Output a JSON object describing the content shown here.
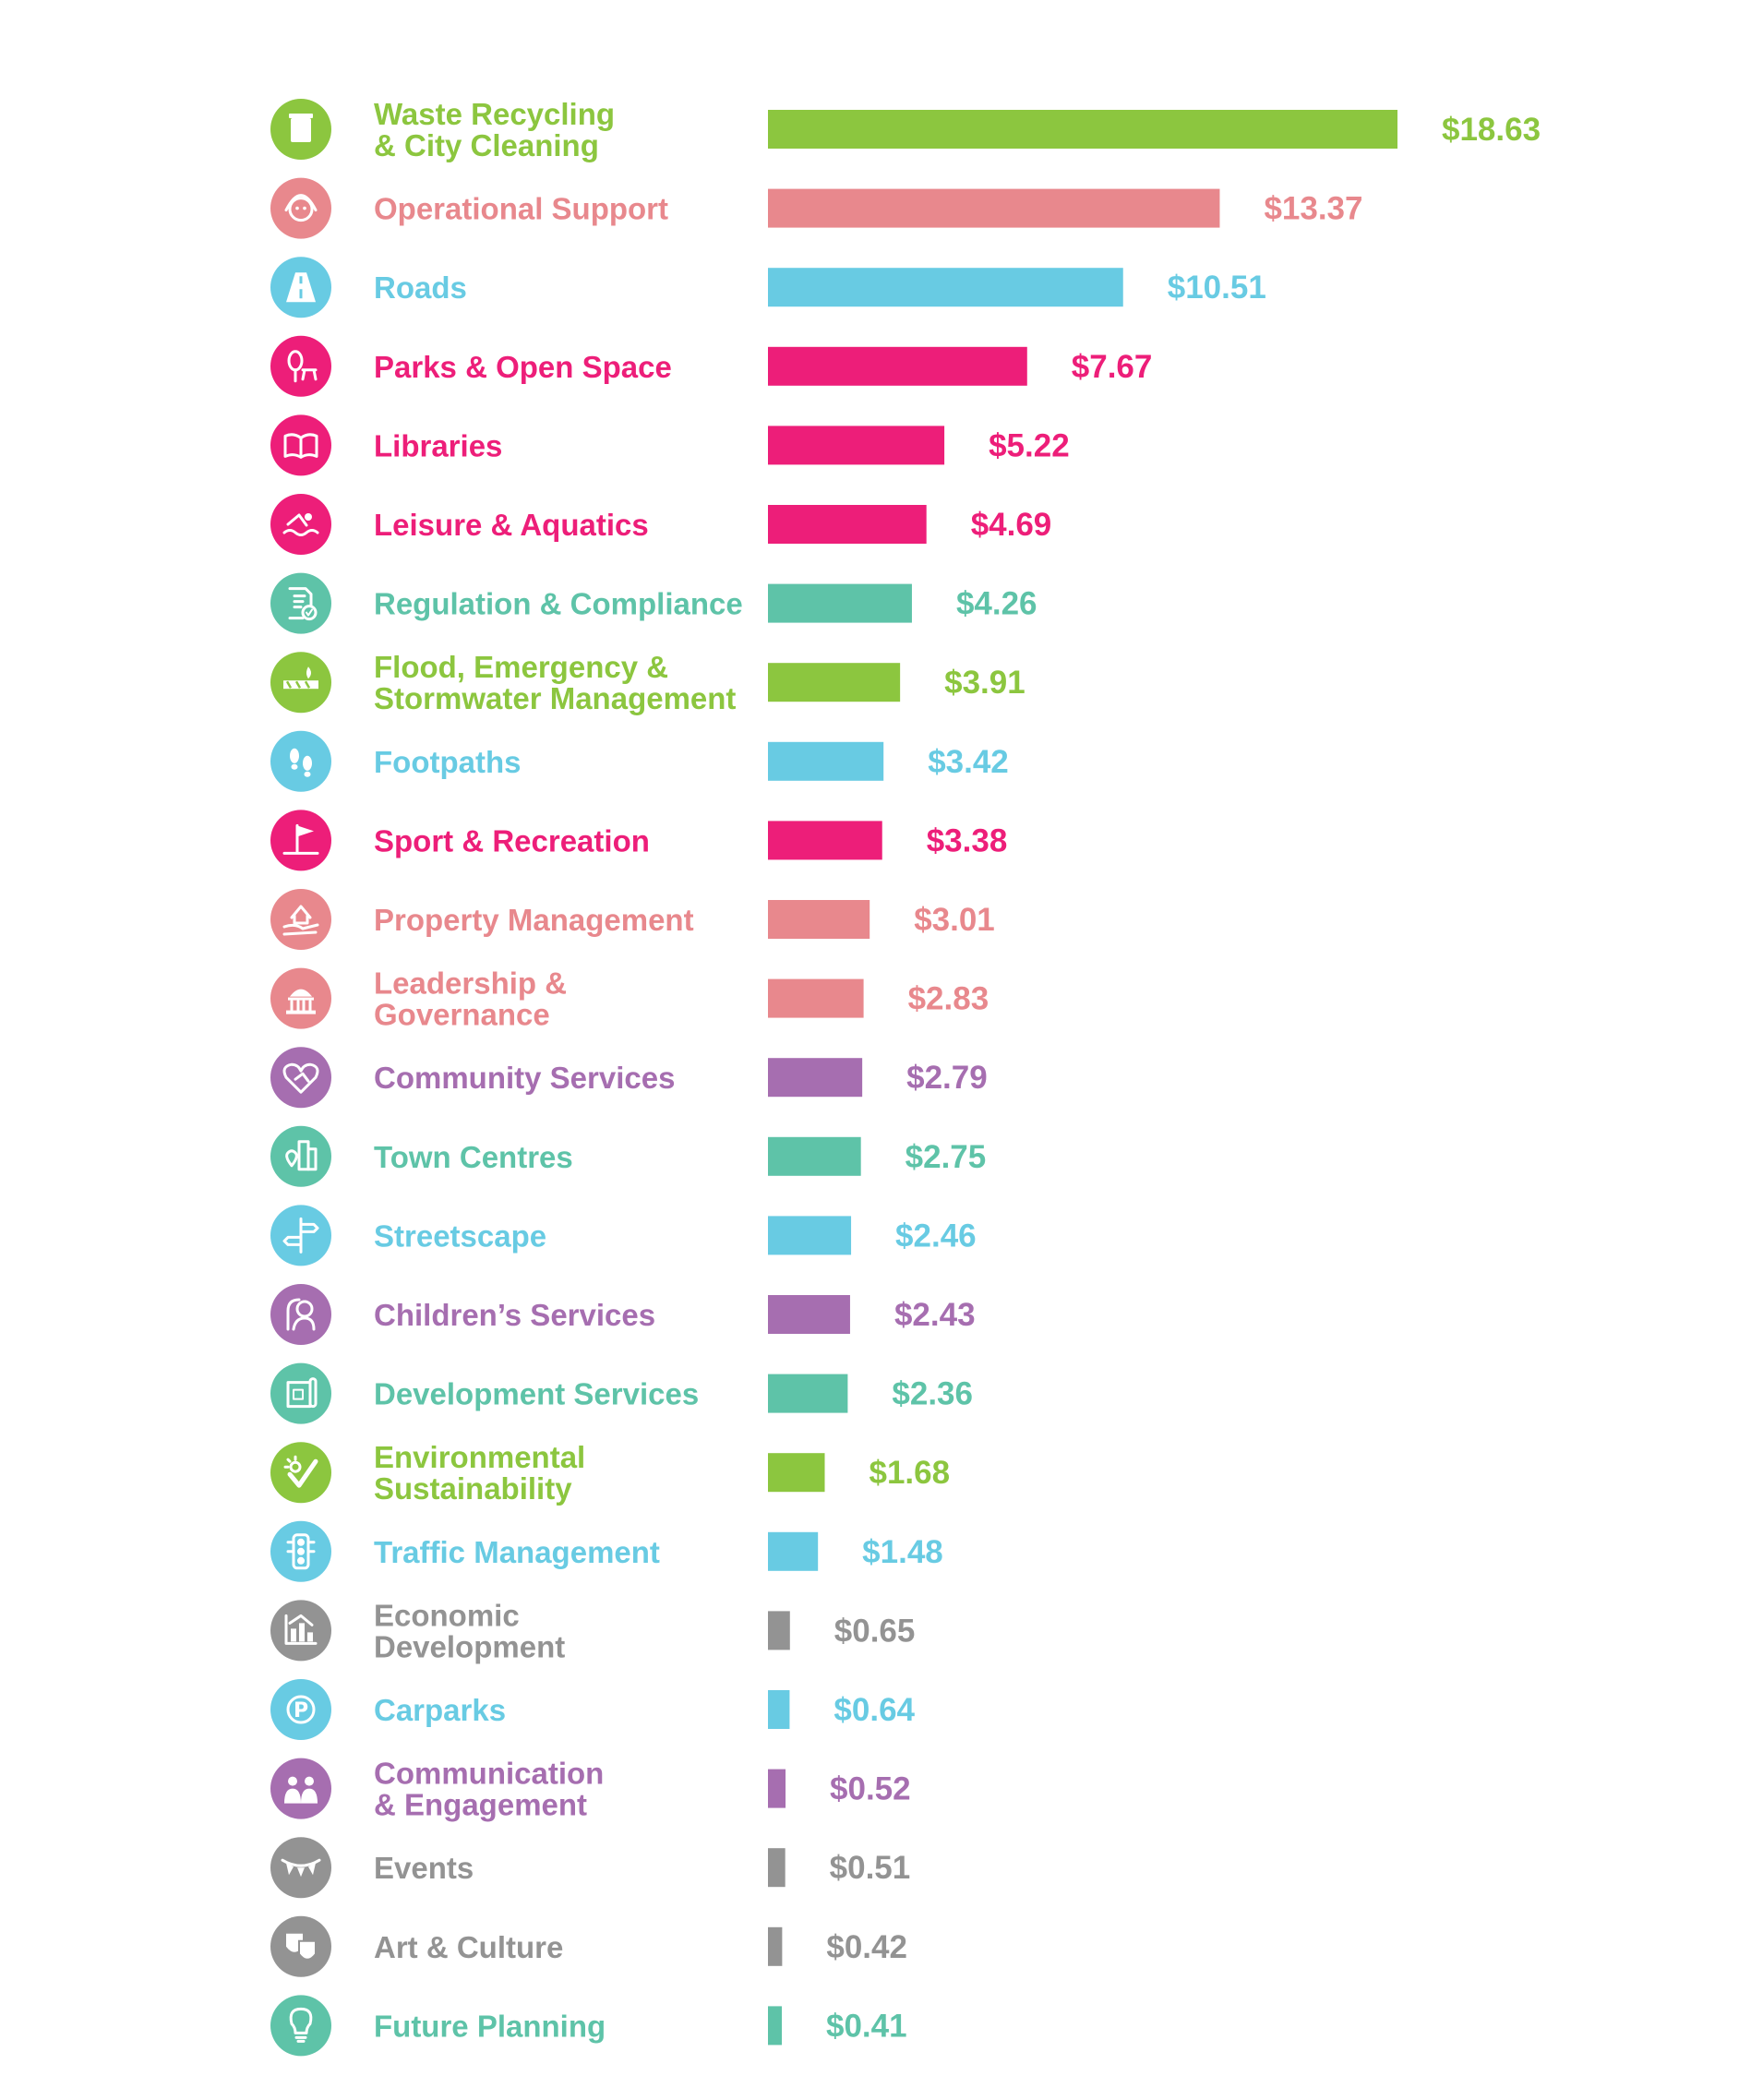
{
  "palette": {
    "green": "#8cc63f",
    "salmon": "#e8888d",
    "sky": "#68cbe3",
    "magenta": "#ed1e79",
    "teal": "#5ec3a8",
    "purple": "#a66eb0",
    "gray": "#939393"
  },
  "chart_data": {
    "type": "bar",
    "orientation": "horizontal",
    "value_prefix": "$",
    "xlim": [
      0,
      18.63
    ],
    "grid": false,
    "categories": [
      {
        "lines": [
          "Waste Recycling",
          "& City Cleaning"
        ],
        "value": 18.63,
        "label": "$18.63",
        "color": "green",
        "icon": "wheelie-bin-icon"
      },
      {
        "lines": [
          "Operational Support"
        ],
        "value": 13.37,
        "label": "$13.37",
        "color": "salmon",
        "icon": "support-agent-icon"
      },
      {
        "lines": [
          "Roads"
        ],
        "value": 10.51,
        "label": "$10.51",
        "color": "sky",
        "icon": "road-icon"
      },
      {
        "lines": [
          "Parks & Open Space"
        ],
        "value": 7.67,
        "label": "$7.67",
        "color": "magenta",
        "icon": "tree-picnic-table-icon"
      },
      {
        "lines": [
          "Libraries"
        ],
        "value": 5.22,
        "label": "$5.22",
        "color": "magenta",
        "icon": "open-book-icon"
      },
      {
        "lines": [
          "Leisure & Aquatics"
        ],
        "value": 4.69,
        "label": "$4.69",
        "color": "magenta",
        "icon": "swimmer-icon"
      },
      {
        "lines": [
          "Regulation & Compliance"
        ],
        "value": 4.26,
        "label": "$4.26",
        "color": "teal",
        "icon": "document-check-icon"
      },
      {
        "lines": [
          "Flood, Emergency &",
          "Stormwater Management"
        ],
        "value": 3.91,
        "label": "$3.91",
        "color": "green",
        "icon": "barrier-flame-icon"
      },
      {
        "lines": [
          "Footpaths"
        ],
        "value": 3.42,
        "label": "$3.42",
        "color": "sky",
        "icon": "footprints-icon"
      },
      {
        "lines": [
          "Sport & Recreation"
        ],
        "value": 3.38,
        "label": "$3.38",
        "color": "magenta",
        "icon": "golf-flag-icon"
      },
      {
        "lines": [
          "Property Management"
        ],
        "value": 3.01,
        "label": "$3.01",
        "color": "salmon",
        "icon": "house-hand-icon"
      },
      {
        "lines": [
          "Leadership &",
          "Governance"
        ],
        "value": 2.83,
        "label": "$2.83",
        "color": "salmon",
        "icon": "capitol-building-icon"
      },
      {
        "lines": [
          "Community Services"
        ],
        "value": 2.79,
        "label": "$2.79",
        "color": "purple",
        "icon": "handshake-heart-icon"
      },
      {
        "lines": [
          "Town Centres"
        ],
        "value": 2.75,
        "label": "$2.75",
        "color": "teal",
        "icon": "buildings-pin-icon"
      },
      {
        "lines": [
          "Streetscape"
        ],
        "value": 2.46,
        "label": "$2.46",
        "color": "sky",
        "icon": "signpost-icon"
      },
      {
        "lines": [
          "Children’s Services"
        ],
        "value": 2.43,
        "label": "$2.43",
        "color": "purple",
        "icon": "child-icon"
      },
      {
        "lines": [
          "Development Services"
        ],
        "value": 2.36,
        "label": "$2.36",
        "color": "teal",
        "icon": "blueprint-icon"
      },
      {
        "lines": [
          "Environmental",
          "Sustainability"
        ],
        "value": 1.68,
        "label": "$1.68",
        "color": "green",
        "icon": "sun-check-icon"
      },
      {
        "lines": [
          "Traffic Management"
        ],
        "value": 1.48,
        "label": "$1.48",
        "color": "sky",
        "icon": "traffic-light-icon"
      },
      {
        "lines": [
          "Economic",
          "Development"
        ],
        "value": 0.65,
        "label": "$0.65",
        "color": "gray",
        "icon": "bar-graph-icon"
      },
      {
        "lines": [
          "Carparks"
        ],
        "value": 0.64,
        "label": "$0.64",
        "color": "sky",
        "icon": "parking-icon"
      },
      {
        "lines": [
          "Communication",
          "& Engagement"
        ],
        "value": 0.52,
        "label": "$0.52",
        "color": "purple",
        "icon": "people-talking-icon"
      },
      {
        "lines": [
          "Events"
        ],
        "value": 0.51,
        "label": "$0.51",
        "color": "gray",
        "icon": "bunting-icon"
      },
      {
        "lines": [
          "Art & Culture"
        ],
        "value": 0.42,
        "label": "$0.42",
        "color": "gray",
        "icon": "theatre-masks-icon"
      },
      {
        "lines": [
          "Future Planning"
        ],
        "value": 0.41,
        "label": "$0.41",
        "color": "teal",
        "icon": "lightbulb-icon"
      }
    ]
  }
}
